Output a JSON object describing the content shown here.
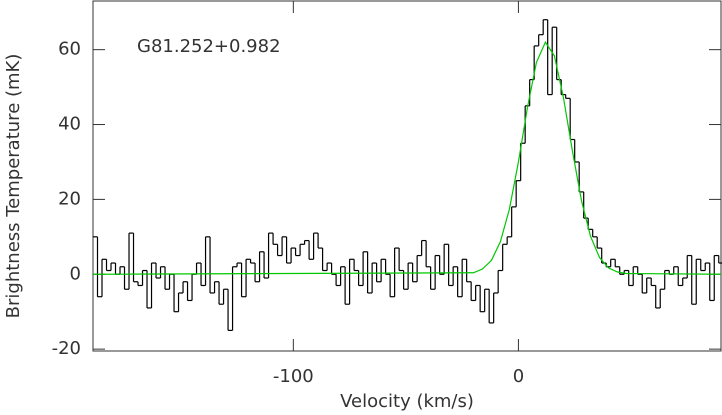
{
  "chart_data": {
    "type": "step",
    "annotation": "G81.252+0.982",
    "x_label": "Velocity (km/s)",
    "y_label": "Brightness Temperature (mK)",
    "xlim": [
      -189,
      90
    ],
    "ylim": [
      -20.5,
      73
    ],
    "xticks": [
      -100,
      0
    ],
    "yticks": [
      -20,
      0,
      20,
      40,
      60
    ],
    "series": [
      {
        "color": "#000000",
        "x": [
          -188,
          -186,
          -184,
          -182,
          -180,
          -178,
          -176,
          -174,
          -172,
          -170,
          -168,
          -166,
          -164,
          -162,
          -160,
          -158,
          -156,
          -154,
          -152,
          -150,
          -148,
          -146,
          -144,
          -142,
          -140,
          -138,
          -136,
          -134,
          -132,
          -130,
          -128,
          -126,
          -124,
          -122,
          -120,
          -118,
          -116,
          -114,
          -112,
          -110,
          -108,
          -106,
          -104,
          -102,
          -100,
          -98,
          -96,
          -94,
          -92,
          -90,
          -88,
          -86,
          -84,
          -82,
          -80,
          -78,
          -76,
          -74,
          -72,
          -70,
          -68,
          -66,
          -64,
          -62,
          -60,
          -58,
          -56,
          -54,
          -52,
          -50,
          -48,
          -46,
          -44,
          -42,
          -40,
          -38,
          -36,
          -34,
          -32,
          -30,
          -28,
          -26,
          -24,
          -22,
          -20,
          -18,
          -16,
          -14,
          -12,
          -10,
          -8,
          -6,
          -4,
          -2,
          0,
          2,
          4,
          6,
          8,
          10,
          12,
          14,
          16,
          18,
          20,
          22,
          24,
          26,
          28,
          30,
          32,
          34,
          36,
          38,
          40,
          42,
          44,
          46,
          48,
          50,
          52,
          54,
          56,
          58,
          60,
          62,
          64,
          66,
          68,
          70,
          72,
          74,
          76,
          78,
          80,
          82,
          84,
          86,
          88,
          90
        ],
        "values": [
          10,
          -6,
          4,
          1,
          3,
          0,
          2,
          -4,
          11,
          -2,
          -3,
          1,
          -9,
          3,
          -1,
          2,
          -4,
          0,
          -10,
          -5,
          -2,
          -7,
          0,
          3,
          -3,
          10,
          -5,
          -2,
          -8,
          -4,
          -15,
          2,
          3,
          -6,
          4,
          3,
          -2,
          6,
          -1,
          11,
          8,
          5,
          10,
          3,
          7,
          5,
          8,
          9,
          4,
          11,
          7,
          1,
          3,
          0,
          -3,
          2,
          -8,
          4,
          1,
          -3,
          6,
          -5,
          3,
          -2,
          4,
          0,
          -6,
          7,
          1,
          -4,
          3,
          -2,
          5,
          9,
          2,
          -4,
          5,
          0,
          8,
          -3,
          2,
          -6,
          4,
          -2,
          -7,
          -3,
          -10,
          -4,
          -13,
          -5,
          1,
          8,
          10,
          18,
          25,
          35,
          45,
          52,
          61,
          64,
          68,
          48,
          66,
          52,
          48,
          47,
          36,
          30,
          22,
          15,
          12,
          10,
          7,
          3,
          2,
          4,
          2,
          0,
          1,
          -3,
          2,
          0,
          -5,
          -1,
          -3,
          -9,
          -4,
          1,
          0,
          2,
          -3,
          -1,
          5,
          -8,
          4,
          1,
          3,
          -7,
          5,
          3
        ]
      },
      {
        "color": "#00c800",
        "x": [
          -189,
          -20,
          -16,
          -12,
          -8,
          -4,
          0,
          4,
          8,
          12,
          16,
          20,
          24,
          28,
          32,
          36,
          40,
          44,
          48,
          90
        ],
        "values": [
          0,
          0.4,
          1.4,
          3.7,
          8.7,
          17.4,
          30.0,
          44.5,
          56.6,
          62.0,
          58.3,
          47.2,
          32.9,
          19.7,
          10.2,
          4.5,
          1.7,
          0.6,
          0.2,
          0
        ]
      }
    ]
  }
}
